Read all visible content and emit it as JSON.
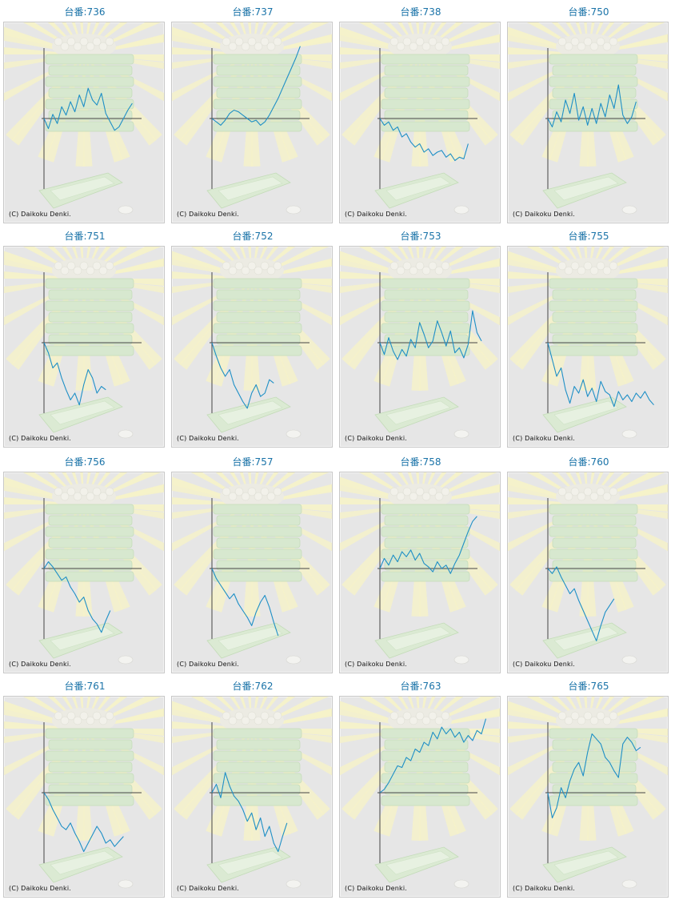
{
  "page": {
    "label_prefix": "台番:",
    "copyright": "(C) Daikoku Denki.",
    "line_color": "#1e8fc6"
  },
  "chart_data": [
    {
      "type": "line",
      "machine": "736",
      "x": [
        0,
        1,
        2,
        3,
        4,
        5,
        6,
        7,
        8,
        9,
        10,
        11,
        12,
        13,
        14,
        15,
        16,
        17,
        18,
        19,
        20
      ],
      "values": [
        0,
        -12,
        5,
        -6,
        14,
        4,
        20,
        8,
        28,
        14,
        36,
        22,
        16,
        30,
        6,
        -4,
        -14,
        -10,
        0,
        10,
        18
      ]
    },
    {
      "type": "line",
      "machine": "737",
      "x": [
        0,
        1,
        2,
        3,
        4,
        5,
        6,
        7,
        8,
        9,
        10,
        11,
        12,
        13,
        14,
        15,
        16,
        17,
        18,
        19,
        20
      ],
      "values": [
        0,
        -4,
        -8,
        -2,
        6,
        10,
        8,
        4,
        0,
        -4,
        -2,
        -8,
        -4,
        4,
        14,
        24,
        36,
        48,
        60,
        72,
        86
      ]
    },
    {
      "type": "line",
      "machine": "738",
      "x": [
        0,
        1,
        2,
        3,
        4,
        5,
        6,
        7,
        8,
        9,
        10,
        11,
        12,
        13,
        14,
        15,
        16,
        17,
        18,
        19,
        20
      ],
      "values": [
        0,
        -8,
        -4,
        -14,
        -10,
        -22,
        -18,
        -28,
        -34,
        -30,
        -40,
        -36,
        -44,
        -40,
        -38,
        -46,
        -42,
        -50,
        -46,
        -48,
        -30
      ]
    },
    {
      "type": "line",
      "machine": "750",
      "x": [
        0,
        1,
        2,
        3,
        4,
        5,
        6,
        7,
        8,
        9,
        10,
        11,
        12,
        13,
        14,
        15,
        16,
        17,
        18,
        19,
        20
      ],
      "values": [
        0,
        -10,
        8,
        -4,
        22,
        6,
        30,
        -2,
        14,
        -8,
        12,
        -6,
        18,
        2,
        28,
        12,
        40,
        4,
        -6,
        2,
        20
      ]
    },
    {
      "type": "line",
      "machine": "751",
      "x": [
        0,
        1,
        2,
        3,
        4,
        5,
        6,
        7,
        8,
        9,
        10,
        11,
        12,
        13,
        14
      ],
      "values": [
        0,
        -12,
        -30,
        -24,
        -42,
        -56,
        -68,
        -60,
        -74,
        -50,
        -32,
        -42,
        -60,
        -52,
        -56
      ]
    },
    {
      "type": "line",
      "machine": "752",
      "x": [
        0,
        1,
        2,
        3,
        4,
        5,
        6,
        7,
        8,
        9,
        10,
        11,
        12,
        13,
        14
      ],
      "values": [
        0,
        -16,
        -30,
        -40,
        -32,
        -50,
        -60,
        -70,
        -78,
        -60,
        -50,
        -64,
        -60,
        -44,
        -48
      ]
    },
    {
      "type": "line",
      "machine": "753",
      "x": [
        0,
        1,
        2,
        3,
        4,
        5,
        6,
        7,
        8,
        9,
        10,
        11,
        12,
        13,
        14,
        15,
        16,
        17,
        18,
        19,
        20,
        21,
        22,
        23
      ],
      "values": [
        0,
        -14,
        6,
        -10,
        -20,
        -8,
        -16,
        4,
        -6,
        24,
        10,
        -6,
        2,
        26,
        12,
        -4,
        14,
        -12,
        -6,
        -18,
        -2,
        38,
        12,
        2
      ]
    },
    {
      "type": "line",
      "machine": "755",
      "x": [
        0,
        1,
        2,
        3,
        4,
        5,
        6,
        7,
        8,
        9,
        10,
        11,
        12,
        13,
        14,
        15,
        16,
        17,
        18,
        19,
        20,
        21,
        22,
        23,
        24
      ],
      "values": [
        0,
        -20,
        -40,
        -30,
        -56,
        -72,
        -52,
        -60,
        -44,
        -64,
        -54,
        -70,
        -46,
        -58,
        -62,
        -76,
        -58,
        -68,
        -62,
        -70,
        -60,
        -66,
        -58,
        -68,
        -74
      ]
    },
    {
      "type": "line",
      "machine": "756",
      "x": [
        0,
        1,
        2,
        3,
        4,
        5,
        6,
        7,
        8,
        9,
        10,
        11,
        12,
        13,
        14,
        15
      ],
      "values": [
        0,
        8,
        2,
        -6,
        -14,
        -10,
        -22,
        -30,
        -40,
        -34,
        -50,
        -60,
        -66,
        -76,
        -62,
        -50
      ]
    },
    {
      "type": "line",
      "machine": "757",
      "x": [
        0,
        1,
        2,
        3,
        4,
        5,
        6,
        7,
        8,
        9,
        10,
        11,
        12,
        13,
        14,
        15
      ],
      "values": [
        0,
        -12,
        -20,
        -28,
        -36,
        -30,
        -42,
        -50,
        -58,
        -68,
        -52,
        -40,
        -32,
        -46,
        -64,
        -80
      ]
    },
    {
      "type": "line",
      "machine": "758",
      "x": [
        0,
        1,
        2,
        3,
        4,
        5,
        6,
        7,
        8,
        9,
        10,
        11,
        12,
        13,
        14,
        15,
        16,
        17,
        18,
        19,
        20,
        21,
        22
      ],
      "values": [
        0,
        12,
        4,
        16,
        8,
        20,
        14,
        22,
        10,
        18,
        6,
        2,
        -4,
        8,
        0,
        4,
        -6,
        6,
        16,
        30,
        44,
        56,
        62
      ]
    },
    {
      "type": "line",
      "machine": "760",
      "x": [
        0,
        1,
        2,
        3,
        4,
        5,
        6,
        7,
        8,
        9,
        10,
        11,
        12,
        13,
        14,
        15
      ],
      "values": [
        0,
        -6,
        2,
        -10,
        -20,
        -30,
        -24,
        -38,
        -50,
        -62,
        -74,
        -86,
        -68,
        -52,
        -44,
        -36
      ]
    },
    {
      "type": "line",
      "machine": "761",
      "x": [
        0,
        1,
        2,
        3,
        4,
        5,
        6,
        7,
        8,
        9,
        10,
        11,
        12,
        13,
        14,
        15,
        16,
        17,
        18
      ],
      "values": [
        0,
        -8,
        -20,
        -30,
        -40,
        -44,
        -36,
        -48,
        -58,
        -70,
        -60,
        -50,
        -40,
        -48,
        -60,
        -56,
        -64,
        -58,
        -52
      ]
    },
    {
      "type": "line",
      "machine": "762",
      "x": [
        0,
        1,
        2,
        3,
        4,
        5,
        6,
        7,
        8,
        9,
        10,
        11,
        12,
        13,
        14,
        15,
        16,
        17
      ],
      "values": [
        0,
        10,
        -6,
        24,
        8,
        -4,
        -10,
        -20,
        -34,
        -24,
        -44,
        -30,
        -52,
        -40,
        -60,
        -70,
        -52,
        -36
      ]
    },
    {
      "type": "line",
      "machine": "763",
      "x": [
        0,
        1,
        2,
        3,
        4,
        5,
        6,
        7,
        8,
        9,
        10,
        11,
        12,
        13,
        14,
        15,
        16,
        17,
        18,
        19,
        20,
        21,
        22,
        23,
        24
      ],
      "values": [
        0,
        4,
        12,
        22,
        32,
        30,
        42,
        38,
        52,
        48,
        60,
        56,
        72,
        64,
        78,
        70,
        76,
        66,
        72,
        60,
        68,
        62,
        74,
        70,
        88
      ]
    },
    {
      "type": "line",
      "machine": "765",
      "x": [
        0,
        1,
        2,
        3,
        4,
        5,
        6,
        7,
        8,
        9,
        10,
        11,
        12,
        13,
        14,
        15,
        16,
        17,
        18,
        19,
        20,
        21
      ],
      "values": [
        0,
        -30,
        -18,
        6,
        -6,
        14,
        28,
        36,
        20,
        48,
        70,
        64,
        58,
        42,
        36,
        26,
        18,
        58,
        66,
        60,
        50,
        54
      ]
    }
  ]
}
